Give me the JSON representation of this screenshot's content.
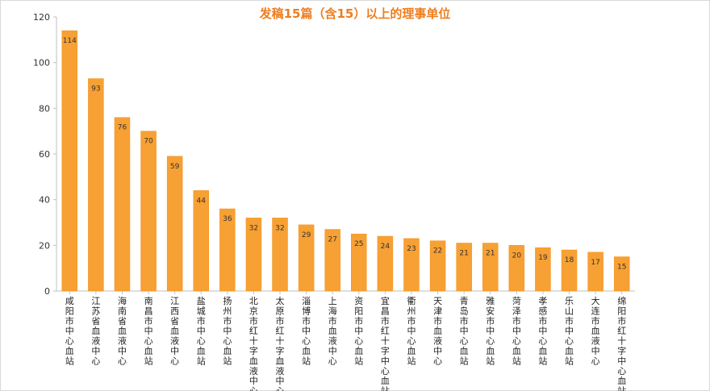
{
  "chart_data": {
    "type": "bar",
    "title": "发稿15篇（含15）以上的理事单位",
    "xlabel": "",
    "ylabel": "",
    "ylim": [
      0,
      120
    ],
    "yticks": [
      0,
      20,
      40,
      60,
      80,
      100,
      120
    ],
    "grid": false,
    "legend": "none",
    "categories": [
      "咸阳市中心血站",
      "江苏省血液中心",
      "海南省血液中心",
      "南昌市中心血站",
      "江西省血液中心",
      "盐城市中心血站",
      "扬州市中心血站",
      "北京市红十字血液中心",
      "太原市红十字血液中心",
      "淄博市中心血站",
      "上海市血液中心",
      "资阳市中心血站",
      "宜昌市红十字中心血站",
      "衢州市中心血站",
      "天津市血液中心",
      "青岛市中心血站",
      "雅安市中心血站",
      "菏泽市中心血站",
      "孝感市中心血站",
      "乐山市中心血站",
      "大连市血液中心",
      "绵阳市红十字中心血站"
    ],
    "values": [
      114,
      93,
      76,
      70,
      59,
      44,
      36,
      32,
      32,
      29,
      27,
      25,
      24,
      23,
      22,
      21,
      21,
      20,
      19,
      18,
      17,
      15
    ]
  },
  "colors": {
    "bar": "#F7A033",
    "bar_edge": "#F39322",
    "title": "#EE7D1E",
    "axis": "#bfbfbf"
  }
}
